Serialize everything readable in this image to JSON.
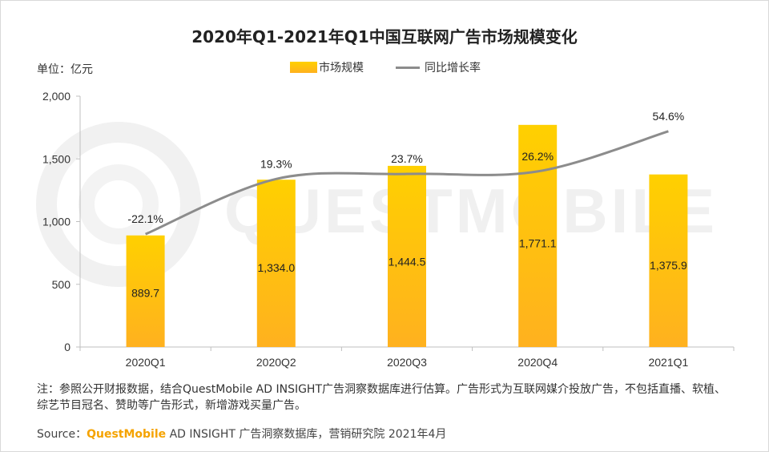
{
  "title": "2020年Q1-2021年Q1中国互联网广告市场规模变化",
  "unit_label": "单位：亿元",
  "watermark": "QUESTMOBILE",
  "colors": {
    "bar_top": "#ffd000",
    "bar_bottom": "#ffb11f",
    "line": "#8c8c8c",
    "axis": "#bfbfbf",
    "brand": "#f5a300"
  },
  "chart_data": {
    "type": "bar",
    "title": "2020年Q1-2021年Q1中国互联网广告市场规模变化",
    "categories": [
      "2020Q1",
      "2020Q2",
      "2020Q3",
      "2020Q4",
      "2021Q1"
    ],
    "series": [
      {
        "name": "市场规模",
        "type": "bar",
        "values": [
          889.7,
          1334.0,
          1444.5,
          1771.1,
          1375.9
        ],
        "labels": [
          "889.7",
          "1,334.0",
          "1,444.5",
          "1,771.1",
          "1,375.9"
        ]
      },
      {
        "name": "同比增长率",
        "type": "line",
        "values": [
          -22.1,
          19.3,
          23.7,
          26.2,
          54.6
        ],
        "labels": [
          "-22.1%",
          "19.3%",
          "23.7%",
          "26.2%",
          "54.6%"
        ]
      }
    ],
    "ylim": [
      0,
      2000
    ],
    "yticks": [
      0,
      500,
      1000,
      1500,
      2000
    ],
    "ytick_labels": [
      "0",
      "500",
      "1,000",
      "1,500",
      "2,000"
    ],
    "line_pixel_levels": [
      900,
      1340,
      1380,
      1400,
      1720
    ],
    "xlabel": "",
    "ylabel": "单位：亿元",
    "legend_position": "top-center",
    "grid": false
  },
  "note": "注：参照公开财报数据，结合QuestMobile AD INSIGHT广告洞察数据库进行估算。广告形式为互联网媒介投放广告，不包括直播、软植、综艺节目冠名、赞助等广告形式，新增游戏买量广告。",
  "source": {
    "prefix": "Source：",
    "brand": "QuestMobile",
    "rest": " AD INSIGHT 广告洞察数据库，营销研究院 2021年4月"
  }
}
